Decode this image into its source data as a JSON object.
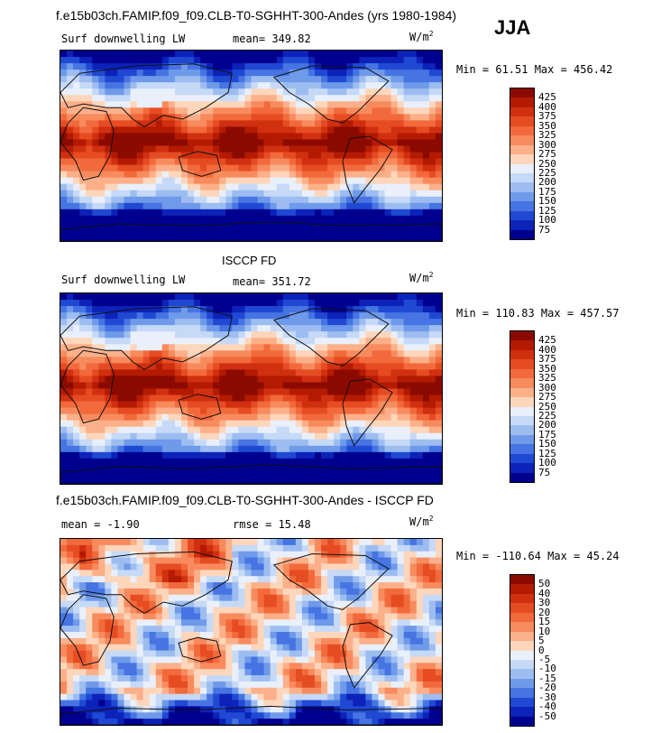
{
  "page": {
    "main_title": "f.e15b03ch.FAMIP.f09_f09.CLB-T0-SGHHT-300-Andes (yrs 1980-1984)",
    "season": "JJA"
  },
  "chart_data": [
    {
      "type": "heatmap",
      "panel_title": "",
      "variable": "Surf downwelling LW",
      "stat_text": "mean= 349.82",
      "mean": 349.82,
      "units_base": "W/m",
      "units_exp": "2",
      "minmax_text": "Min =  61.51 Max = 456.42",
      "min": 61.51,
      "max": 456.42,
      "colorbar_levels": [
        "425",
        "400",
        "375",
        "350",
        "325",
        "300",
        "275",
        "250",
        "225",
        "200",
        "175",
        "150",
        "125",
        "100",
        "75"
      ],
      "colorbar_colors": [
        "#8b0a00",
        "#b31a00",
        "#d03010",
        "#e64c22",
        "#f26a3c",
        "#f78b5e",
        "#fbb08a",
        "#fdd6bb",
        "#e9f0fb",
        "#c6d9f6",
        "#9dbdf1",
        "#6f9ae9",
        "#4674e2",
        "#2049d3",
        "#0c22b8",
        "#00008f"
      ],
      "map_palette": "sequential"
    },
    {
      "type": "heatmap",
      "panel_title": "ISCCP FD",
      "variable": "Surf downwelling LW",
      "stat_text": "mean= 351.72",
      "mean": 351.72,
      "units_base": "W/m",
      "units_exp": "2",
      "minmax_text": "Min = 110.83 Max = 457.57",
      "min": 110.83,
      "max": 457.57,
      "colorbar_levels": [
        "425",
        "400",
        "375",
        "350",
        "325",
        "300",
        "275",
        "250",
        "225",
        "200",
        "175",
        "150",
        "125",
        "100",
        "75"
      ],
      "colorbar_colors": [
        "#8b0a00",
        "#b31a00",
        "#d03010",
        "#e64c22",
        "#f26a3c",
        "#f78b5e",
        "#fbb08a",
        "#fdd6bb",
        "#e9f0fb",
        "#c6d9f6",
        "#9dbdf1",
        "#6f9ae9",
        "#4674e2",
        "#2049d3",
        "#0c22b8",
        "#00008f"
      ],
      "map_palette": "sequential"
    },
    {
      "type": "heatmap",
      "panel_title": "f.e15b03ch.FAMIP.f09_f09.CLB-T0-SGHHT-300-Andes - ISCCP FD",
      "variable": "",
      "stat_text": "mean =  -1.90",
      "mean": -1.9,
      "rmse_text": "rmse =  15.48",
      "rmse": 15.48,
      "units_base": "W/m",
      "units_exp": "2",
      "minmax_text": "Min = -110.64 Max =  45.24",
      "min": -110.64,
      "max": 45.24,
      "colorbar_levels": [
        "50",
        "40",
        "30",
        "20",
        "15",
        "10",
        "5",
        "0",
        "-5",
        "-10",
        "-15",
        "-20",
        "-30",
        "-40",
        "-50"
      ],
      "colorbar_colors": [
        "#8b0a00",
        "#b31a00",
        "#d03010",
        "#e64c22",
        "#f26a3c",
        "#f78b5e",
        "#fbb08a",
        "#fdd6bb",
        "#e9f0fb",
        "#c6d9f6",
        "#9dbdf1",
        "#6f9ae9",
        "#4674e2",
        "#2049d3",
        "#0c22b8",
        "#00008f"
      ],
      "map_palette": "diverging"
    }
  ]
}
